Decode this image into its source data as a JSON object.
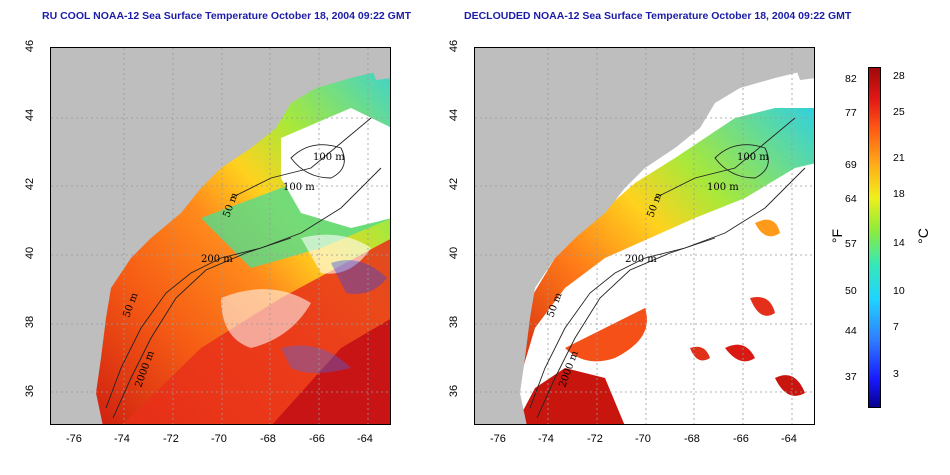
{
  "left_panel": {
    "title": "RU COOL NOAA-12 Sea Surface Temperature October 18, 2004 09:22 GMT"
  },
  "right_panel": {
    "title": "DECLOUDED NOAA-12 Sea Surface Temperature October 18, 2004 09:22 GMT"
  },
  "axes": {
    "x_ticks": [
      "-76",
      "-74",
      "-72",
      "-70",
      "-68",
      "-66",
      "-64"
    ],
    "y_ticks": [
      "46",
      "44",
      "42",
      "40",
      "38",
      "36"
    ]
  },
  "contours": {
    "left": [
      "100 m",
      "100 m",
      "50 m",
      "200 m",
      "50 m",
      "2000 m"
    ],
    "right": [
      "100 m",
      "100 m",
      "50 m",
      "200 m",
      "50 m",
      "2000 m"
    ]
  },
  "colorbar": {
    "fahrenheit_ticks": [
      "82",
      "77",
      "69",
      "64",
      "57",
      "50",
      "44",
      "37"
    ],
    "celsius_ticks": [
      "28",
      "25",
      "21",
      "18",
      "14",
      "10",
      "7",
      "3"
    ],
    "fahrenheit_unit": "°F",
    "celsius_unit": "°C"
  }
}
